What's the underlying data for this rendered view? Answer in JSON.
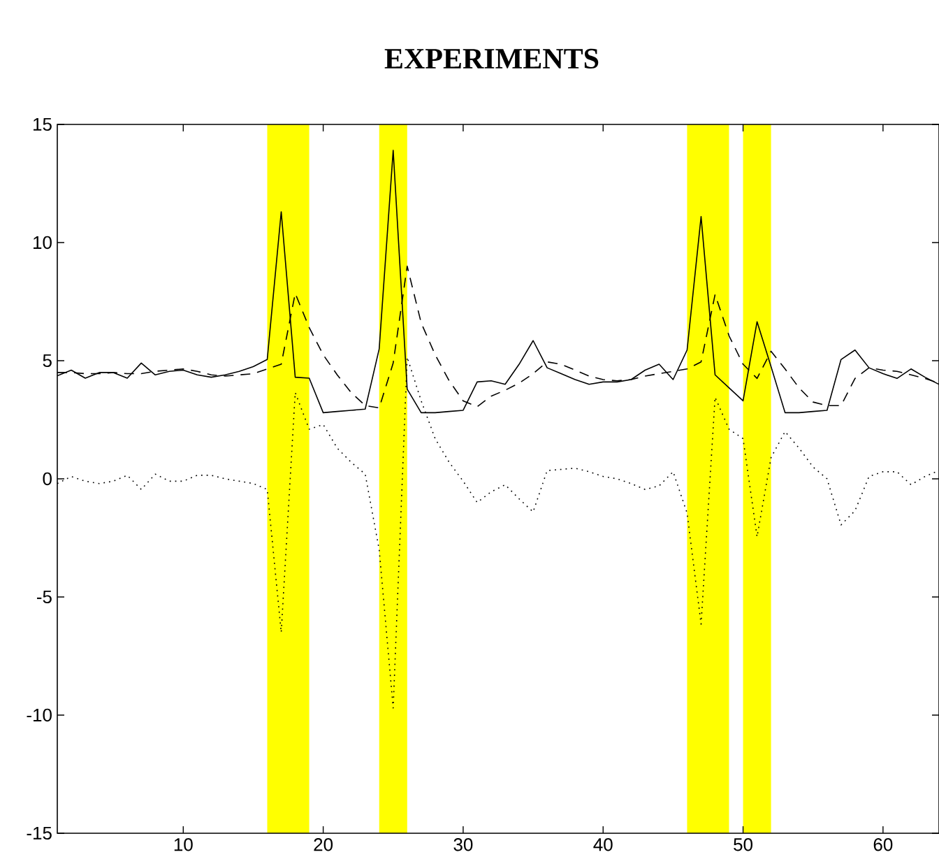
{
  "chart_data": {
    "type": "line",
    "title": "EXPERIMENTS",
    "x": [
      1,
      2,
      3,
      4,
      5,
      6,
      7,
      8,
      9,
      10,
      11,
      12,
      13,
      14,
      15,
      16,
      17,
      18,
      19,
      20,
      21,
      22,
      23,
      24,
      25,
      26,
      27,
      28,
      29,
      30,
      31,
      32,
      33,
      34,
      35,
      36,
      37,
      38,
      39,
      40,
      41,
      42,
      43,
      44,
      45,
      46,
      47,
      48,
      49,
      50,
      51,
      52,
      53,
      54,
      55,
      56,
      57,
      58,
      59,
      60,
      61,
      62,
      63,
      64
    ],
    "series": [
      {
        "color": "#000000",
        "line_style": "solid",
        "values": [
          4.36,
          4.6,
          4.26,
          4.5,
          4.5,
          4.26,
          4.9,
          4.4,
          4.55,
          4.6,
          4.4,
          4.3,
          4.4,
          4.55,
          4.75,
          5.05,
          11.3,
          4.3,
          4.26,
          2.8,
          2.85,
          2.9,
          2.95,
          5.5,
          13.9,
          3.8,
          2.8,
          2.8,
          2.85,
          2.9,
          4.1,
          4.15,
          4.0,
          4.85,
          5.85,
          4.7,
          4.45,
          4.2,
          4.0,
          4.1,
          4.1,
          4.2,
          4.6,
          4.85,
          4.2,
          5.45,
          11.1,
          4.4,
          3.85,
          3.3,
          6.65,
          4.75,
          2.8,
          2.8,
          2.85,
          2.9,
          5.05,
          5.45,
          4.7,
          4.45,
          4.25,
          4.65,
          4.3,
          4.0
        ]
      },
      {
        "color": "#000000",
        "line_style": "dashed",
        "values": [
          4.5,
          4.5,
          4.45,
          4.45,
          4.5,
          4.45,
          4.45,
          4.55,
          4.6,
          4.65,
          4.55,
          4.4,
          4.35,
          4.4,
          4.45,
          4.65,
          4.85,
          7.85,
          6.4,
          5.25,
          4.4,
          3.65,
          3.1,
          3.0,
          4.9,
          9.0,
          6.6,
          5.25,
          4.15,
          3.3,
          3.05,
          3.5,
          3.75,
          4.05,
          4.45,
          4.95,
          4.85,
          4.6,
          4.35,
          4.2,
          4.15,
          4.2,
          4.35,
          4.45,
          4.55,
          4.65,
          4.95,
          7.8,
          6.05,
          4.85,
          4.25,
          5.4,
          4.65,
          3.85,
          3.25,
          3.1,
          3.1,
          4.25,
          4.7,
          4.6,
          4.55,
          4.4,
          4.25,
          4.05
        ]
      },
      {
        "color": "#000000",
        "line_style": "dotted",
        "values": [
          -0.2,
          0.1,
          -0.1,
          -0.2,
          -0.1,
          0.15,
          -0.45,
          0.2,
          -0.1,
          -0.1,
          0.15,
          0.15,
          0.0,
          -0.1,
          -0.2,
          -0.45,
          -6.5,
          3.65,
          2.1,
          2.3,
          1.3,
          0.7,
          0.2,
          -3.0,
          -9.7,
          5.15,
          3.3,
          1.7,
          0.7,
          -0.1,
          -1.0,
          -0.55,
          -0.25,
          -0.85,
          -1.4,
          0.35,
          0.4,
          0.45,
          0.3,
          0.1,
          0.0,
          -0.2,
          -0.45,
          -0.3,
          0.3,
          -1.45,
          -6.15,
          3.45,
          2.1,
          1.7,
          -2.45,
          0.9,
          2.0,
          1.3,
          0.5,
          0.0,
          -1.95,
          -1.35,
          0.1,
          0.3,
          0.3,
          -0.25,
          0.1,
          0.35
        ]
      }
    ],
    "bands": [
      {
        "axis": "x",
        "from": 16,
        "to": 19,
        "color": "#ffff00"
      },
      {
        "axis": "x",
        "from": 24,
        "to": 26,
        "color": "#ffff00"
      },
      {
        "axis": "x",
        "from": 46,
        "to": 49,
        "color": "#ffff00"
      },
      {
        "axis": "x",
        "from": 50,
        "to": 52,
        "color": "#ffff00"
      }
    ],
    "xlim": [
      1,
      64
    ],
    "ylim": [
      -15,
      15
    ],
    "xticks": [
      10,
      20,
      30,
      40,
      50,
      60
    ],
    "yticks": [
      -15,
      -10,
      -5,
      0,
      5,
      10,
      15
    ],
    "grid": false,
    "marker": "none"
  }
}
